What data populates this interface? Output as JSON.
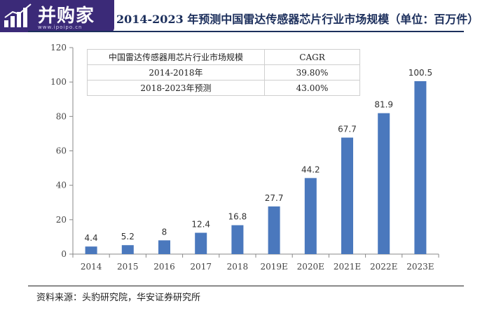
{
  "header": {
    "logo_text": "并购家",
    "logo_url": "www.ipoipo.cn",
    "title": "2014-2023 年预测中国雷达传感器芯片行业市场规模（单位：百万件）"
  },
  "table": {
    "header": [
      "中国雷达传感器用芯片行业市场规模",
      "CAGR"
    ],
    "rows": [
      [
        "2014-2018年",
        "39.80%"
      ],
      [
        "2018-2023年预测",
        "43.00%"
      ]
    ]
  },
  "footer": {
    "source": "资料来源：头豹研究院，华安证券研究所"
  },
  "chart_data": {
    "type": "bar",
    "title": "2014-2023 年预测中国雷达传感器芯片行业市场规模（单位：百万件）",
    "categories": [
      "2014",
      "2015",
      "2016",
      "2017",
      "2018",
      "2019E",
      "2020E",
      "2021E",
      "2022E",
      "2023E"
    ],
    "values": [
      4.4,
      5.2,
      8,
      12.4,
      16.8,
      27.7,
      44.2,
      67.7,
      81.9,
      100.5
    ],
    "value_labels": [
      "4.4",
      "5.2",
      "8",
      "12.4",
      "16.8",
      "27.7",
      "44.2",
      "67.7",
      "81.9",
      "100.5"
    ],
    "yticks": [
      "0",
      "20",
      "40",
      "60",
      "80",
      "100",
      "120"
    ],
    "ylim": [
      0,
      120
    ],
    "xlabel": "",
    "ylabel": "",
    "grid": false,
    "legend": "none",
    "bar_color": "#4a78bd"
  }
}
